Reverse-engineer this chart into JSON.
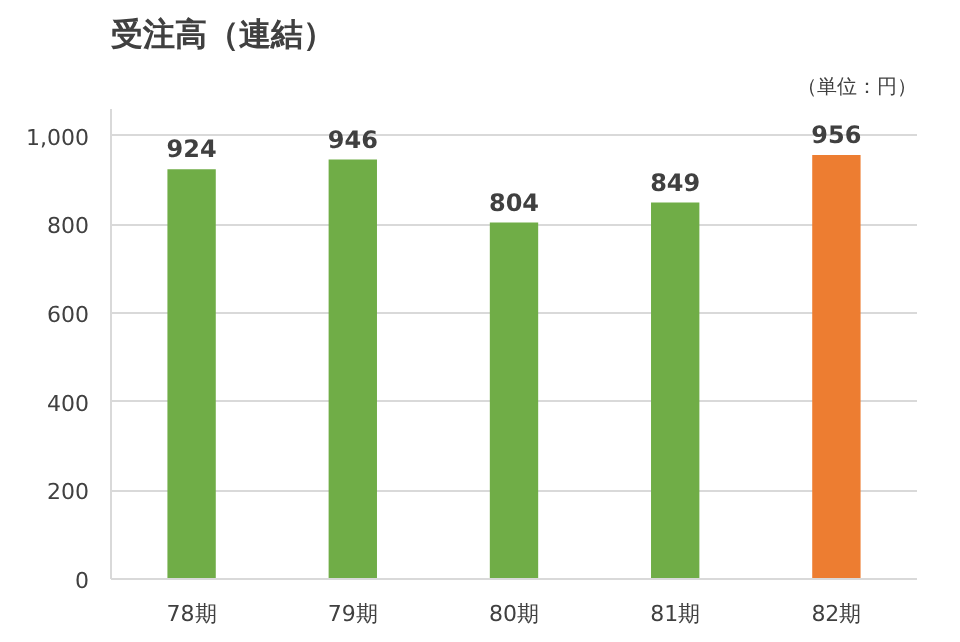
{
  "chart_data": {
    "type": "bar",
    "title": "受注高（連結）",
    "annotations": [
      "（単位：円）"
    ],
    "categories": [
      "78期",
      "79期",
      "80期",
      "81期",
      "82期"
    ],
    "values": [
      924,
      946,
      804,
      849,
      956
    ],
    "colors": [
      "#70ad47",
      "#70ad47",
      "#70ad47",
      "#70ad47",
      "#ed7d31"
    ],
    "ylim": [
      0,
      1060
    ],
    "yticks": [
      0,
      200,
      400,
      600,
      800,
      {
        "value": 1000,
        "label": "1,000"
      }
    ],
    "grid": "y",
    "data_labels": true
  }
}
